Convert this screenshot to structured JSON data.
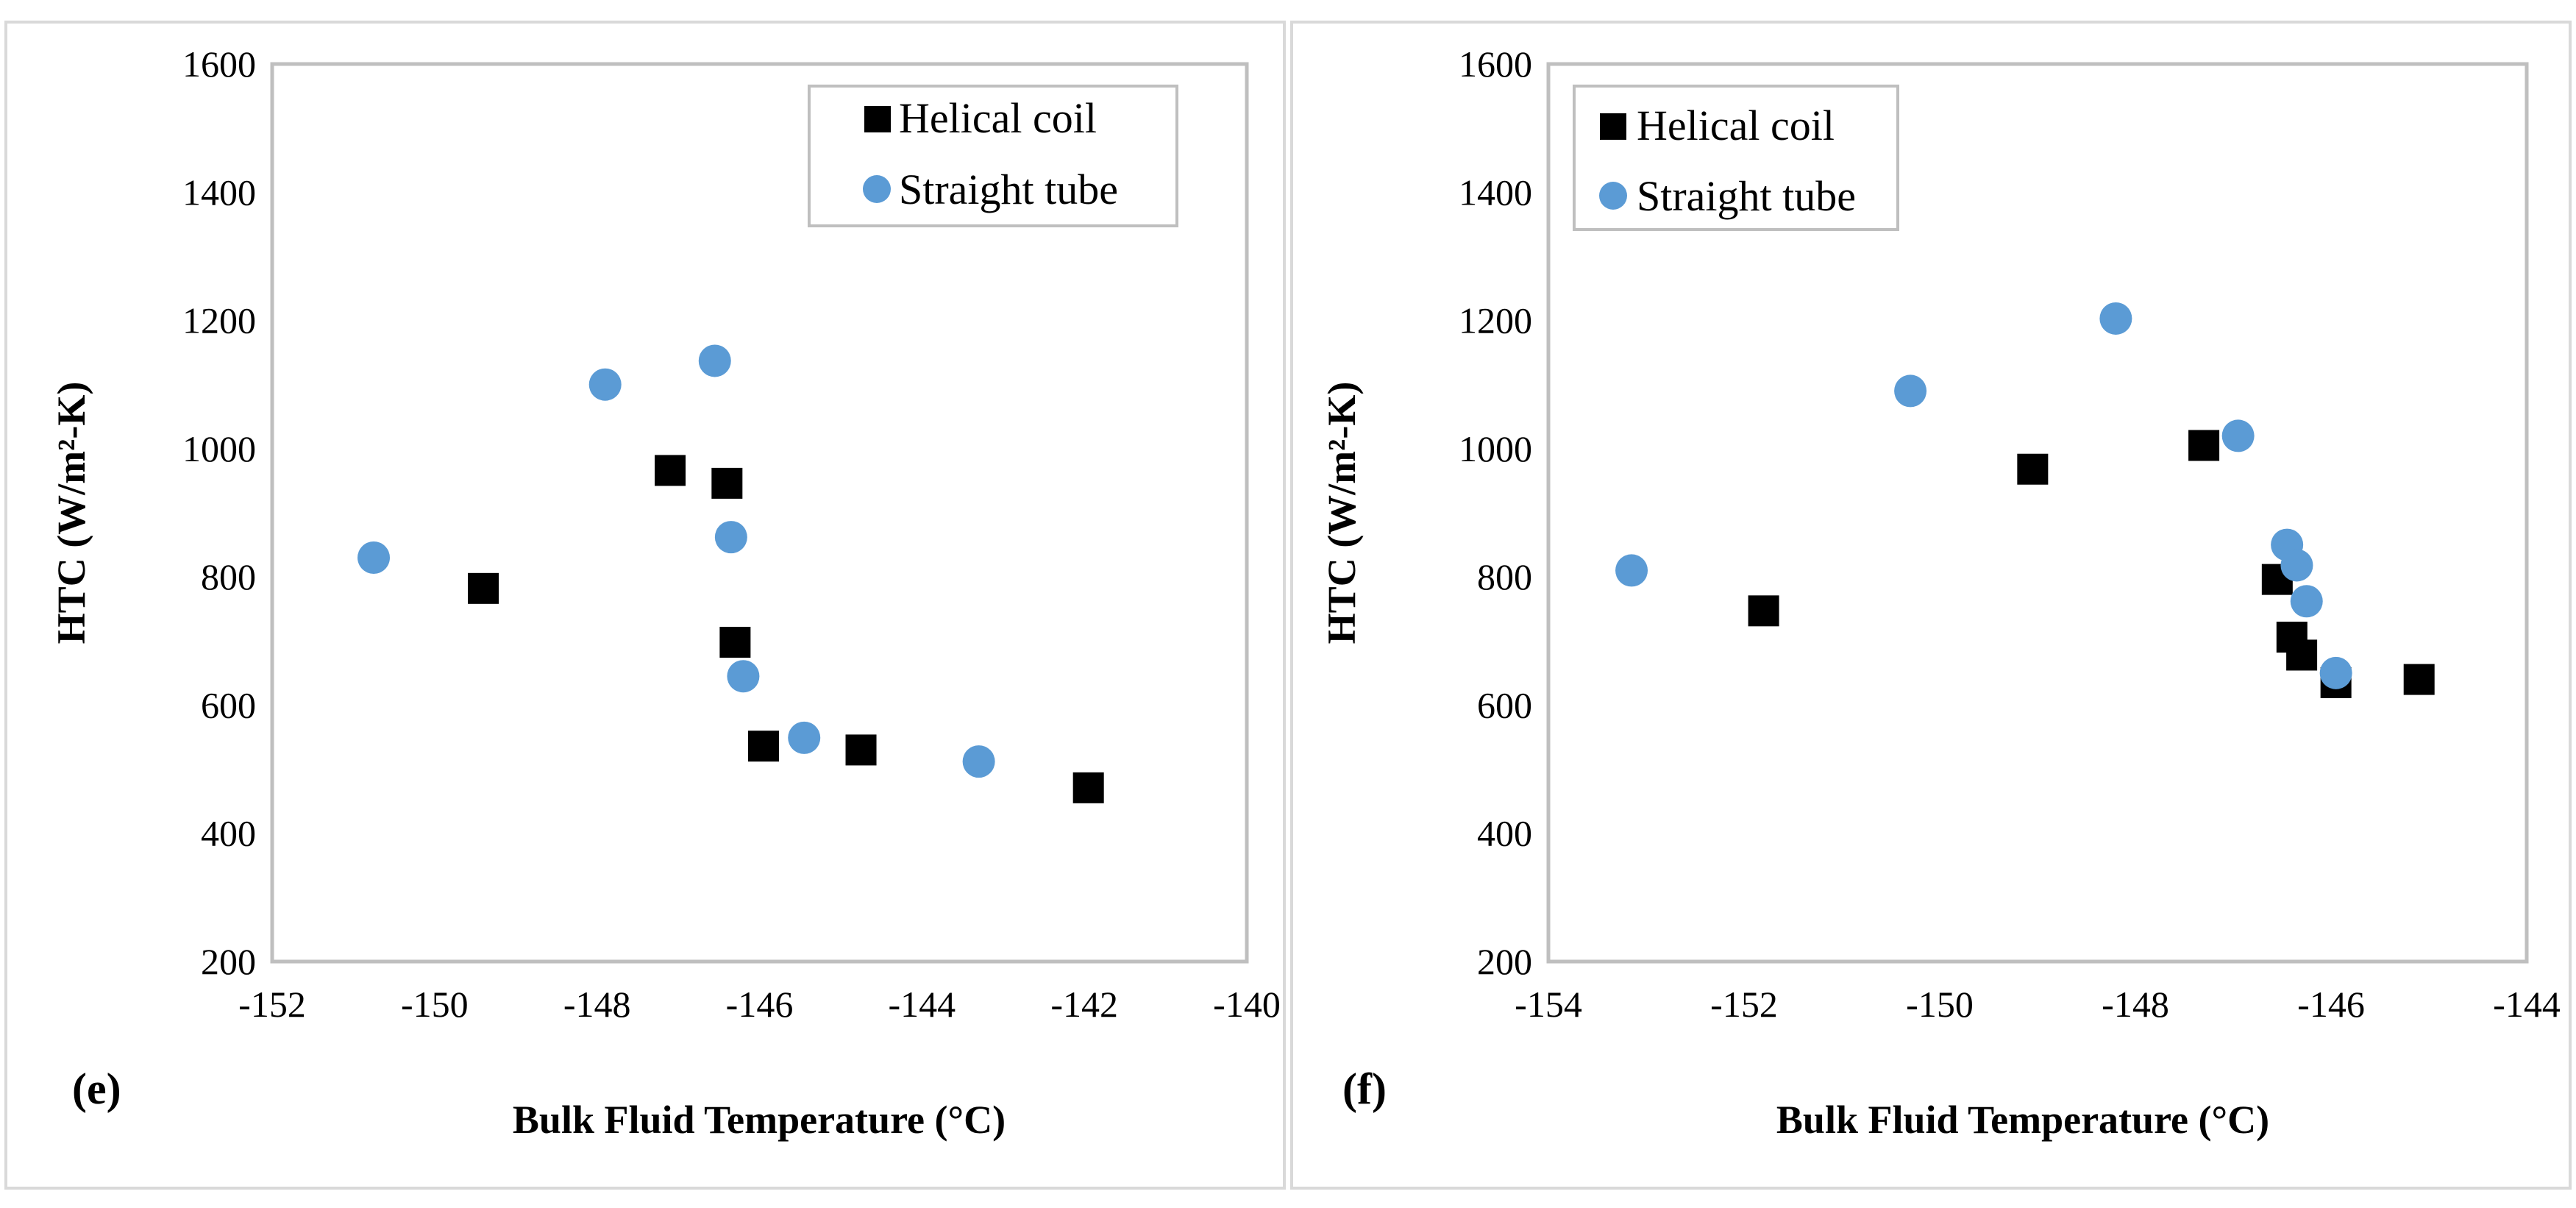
{
  "chart_data": [
    {
      "type": "scatter",
      "panel_label": "(e)",
      "xlabel": "Bulk Fluid Temperature (°C)",
      "ylabel": "HTC (W/m²-K)",
      "xlim": [
        -152,
        -140
      ],
      "ylim": [
        200,
        1600
      ],
      "xticks": [
        -152,
        -150,
        -148,
        -146,
        -144,
        -142,
        -140
      ],
      "yticks": [
        200,
        400,
        600,
        800,
        1000,
        1200,
        1400,
        1600
      ],
      "legend_position": "top-right",
      "series": [
        {
          "name": "Helical coil",
          "marker": "square",
          "color": "#000000",
          "x": [
            -149.4,
            -147.1,
            -146.4,
            -146.3,
            -145.95,
            -144.75,
            -141.95
          ],
          "y": [
            782,
            966,
            946,
            698,
            536,
            530,
            471
          ]
        },
        {
          "name": "Straight tube",
          "marker": "circle",
          "color": "#5B9BD5",
          "x": [
            -150.75,
            -147.9,
            -146.55,
            -146.35,
            -146.2,
            -145.45,
            -143.3
          ],
          "y": [
            830,
            1100,
            1137,
            862,
            645,
            549,
            512
          ]
        }
      ]
    },
    {
      "type": "scatter",
      "panel_label": "(f)",
      "xlabel": "Bulk Fluid Temperature (°C)",
      "ylabel": "HTC (W/m²-K)",
      "xlim": [
        -154,
        -144
      ],
      "ylim": [
        200,
        1600
      ],
      "xticks": [
        -154,
        -152,
        -150,
        -148,
        -146,
        -144
      ],
      "yticks": [
        200,
        400,
        600,
        800,
        1000,
        1200,
        1400,
        1600
      ],
      "legend_position": "top-left",
      "series": [
        {
          "name": "Helical coil",
          "marker": "square",
          "color": "#000000",
          "x": [
            -151.8,
            -149.05,
            -147.3,
            -146.55,
            -146.4,
            -146.3,
            -145.95,
            -145.1
          ],
          "y": [
            747,
            968,
            1005,
            796,
            706,
            678,
            635,
            640
          ]
        },
        {
          "name": "Straight tube",
          "marker": "circle",
          "color": "#5B9BD5",
          "x": [
            -153.15,
            -150.3,
            -148.2,
            -146.95,
            -146.45,
            -146.35,
            -146.25,
            -145.95
          ],
          "y": [
            810,
            1090,
            1203,
            1020,
            850,
            818,
            762,
            650
          ]
        }
      ]
    }
  ]
}
